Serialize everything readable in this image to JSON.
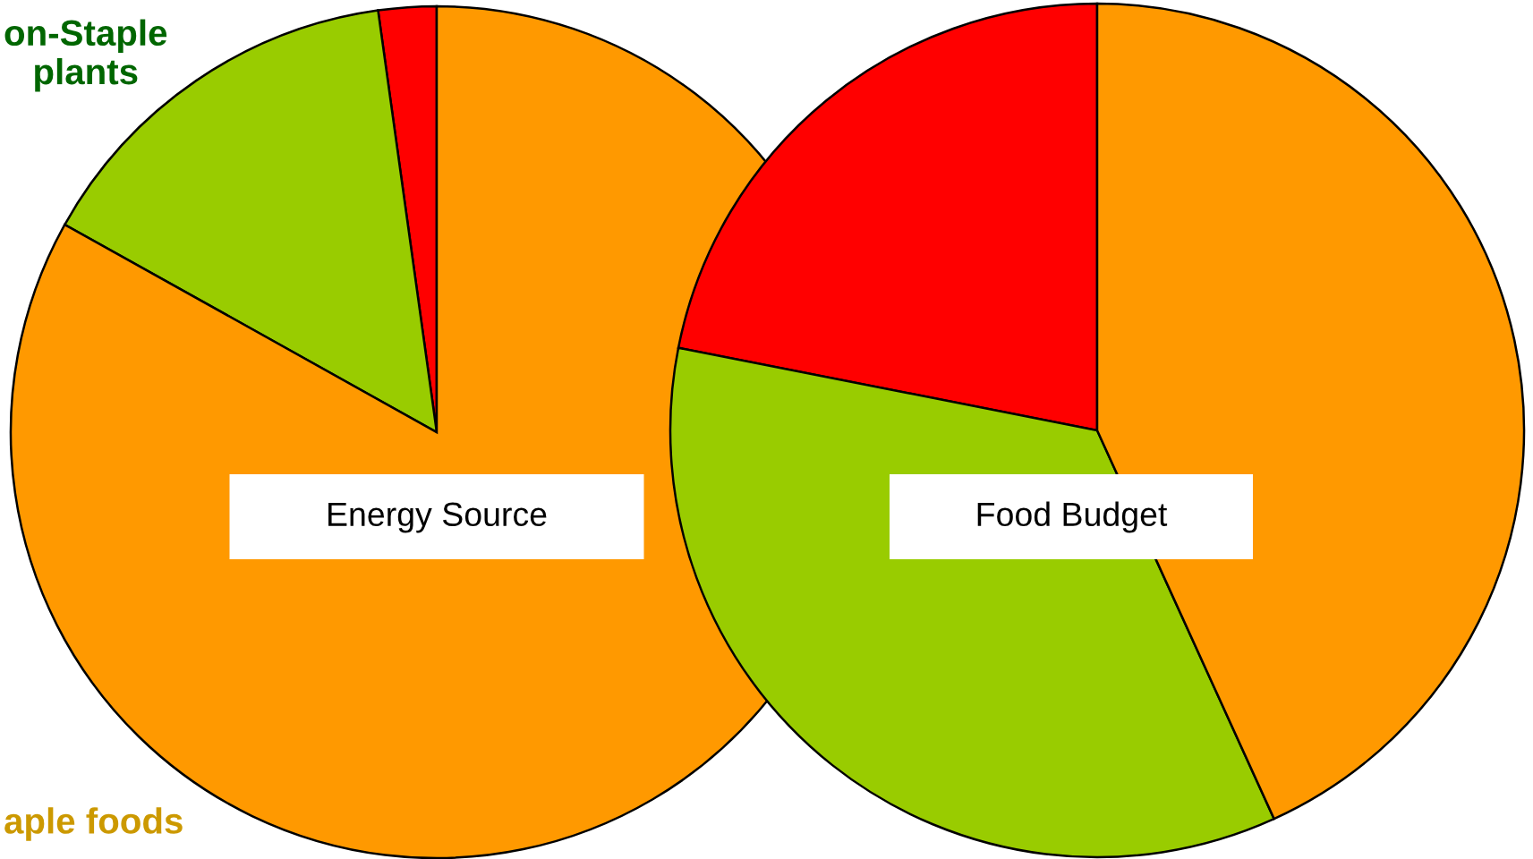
{
  "chart_data": [
    {
      "type": "pie",
      "title": "Energy Source",
      "categories": [
        null,
        "on-Staple\nplants",
        "aple foods"
      ],
      "values": [
        2.2,
        14.7,
        83.1
      ],
      "colors": [
        "#ff0000",
        "#99cc00",
        "#ff9900"
      ]
    },
    {
      "type": "pie",
      "title": "Food Budget",
      "categories": [
        null,
        null,
        null
      ],
      "values": [
        21.9,
        34.9,
        43.2
      ],
      "colors": [
        "#ff0000",
        "#99cc00",
        "#ff9900"
      ]
    }
  ]
}
